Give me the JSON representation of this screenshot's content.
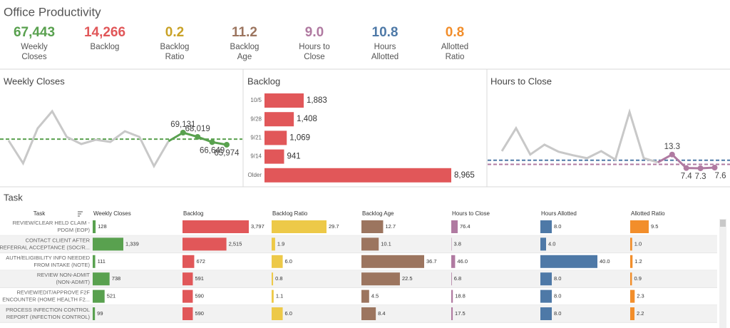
{
  "title": "Office Productivity",
  "kpis": [
    {
      "value": 67443,
      "value_label": "67,443",
      "label": [
        "Weekly",
        "Closes"
      ],
      "color": "#59a14f"
    },
    {
      "value": 14266,
      "value_label": "14,266",
      "label": [
        "Backlog"
      ],
      "color": "#e15759"
    },
    {
      "value": 0.2,
      "label": [
        "Backlog",
        "Ratio"
      ],
      "color": "#c9a227"
    },
    {
      "value": 11.2,
      "label": [
        "Backlog",
        "Age"
      ],
      "color": "#9c755f"
    },
    {
      "value": 9.0,
      "value_label": "9.0",
      "label": [
        "Hours to",
        "Close"
      ],
      "color": "#b07aa1"
    },
    {
      "value": 10.8,
      "label": [
        "Hours",
        "Allotted"
      ],
      "color": "#4e79a7"
    },
    {
      "value": 0.8,
      "label": [
        "Allotted",
        "Ratio"
      ],
      "color": "#f28e2b"
    }
  ],
  "chart_data": [
    {
      "type": "line",
      "title": "Weekly Closes",
      "values": [
        67085,
        61133,
        70247,
        74711,
        68015,
        66155,
        67271,
        66713,
        69500,
        68015,
        60389,
        66899,
        69131,
        68019,
        66649,
        65974
      ],
      "value_labels": [
        null,
        null,
        null,
        null,
        null,
        null,
        null,
        null,
        null,
        null,
        null,
        null,
        "69,131",
        "68,019",
        "66,649",
        "65,974"
      ],
      "color": "#c8c8c8",
      "highlight_color": "#59a14f",
      "highlight_last": 4,
      "reference_lines": [
        {
          "value": 67443,
          "color": "#59a14f"
        }
      ]
    },
    {
      "type": "bar",
      "orientation": "horizontal",
      "title": "Backlog",
      "categories": [
        "10/5",
        "9/28",
        "9/21",
        "9/14",
        "Older"
      ],
      "values": [
        1883,
        1408,
        1069,
        941,
        8965
      ],
      "value_labels": [
        "1,883",
        "1,408",
        "1,069",
        "941",
        "8,965"
      ],
      "color": "#e15759"
    },
    {
      "type": "line",
      "title": "Hours to Close",
      "values": [
        14.8,
        24.8,
        13.3,
        17.6,
        14.5,
        13.0,
        11.7,
        14.8,
        11.1,
        31.9,
        11.7,
        9.9,
        13.3,
        7.4,
        7.3,
        7.6
      ],
      "color": "#c8c8c8",
      "highlight_color": "#b07aa1",
      "highlight_last": 4,
      "reference_lines": [
        {
          "value": 10.8,
          "color": "#4e79a7"
        },
        {
          "value": 9.0,
          "color": "#b07aa1"
        }
      ]
    }
  ],
  "table": {
    "title": "Task",
    "header": "Task",
    "rows": [
      [
        "REVIEW/CLEAR HELD CLAIM -",
        "PDGM (EOP)"
      ],
      [
        "CONTACT CLIENT AFTER",
        "REFERRAL ACCEPTANCE (SOC/R..."
      ],
      [
        "AUTH/ELIGIBILITY INFO NEEDED",
        "FROM INTAKE (NOTE)"
      ],
      [
        "REVIEW NON-ADMIT",
        "(NON-ADMIT)"
      ],
      [
        "REVIEW/EDIT/APPROVE F2F",
        "ENCOUNTER (HOME HEALTH F2..."
      ],
      [
        "PROCESS INFECTION CONTROL",
        "REPORT (INFECTION CONTROL)"
      ]
    ],
    "columns": [
      {
        "name": "Weekly Closes",
        "color": "#59a14f",
        "values": [
          128,
          1339,
          111,
          738,
          521,
          99
        ],
        "value_labels": [
          "128",
          "1,339",
          "111",
          "738",
          "521",
          "99"
        ]
      },
      {
        "name": "Backlog",
        "color": "#e15759",
        "values": [
          3797,
          2515,
          672,
          591,
          590,
          590
        ],
        "value_labels": [
          "3,797",
          "2,515",
          "672",
          "591",
          "590",
          "590"
        ]
      },
      {
        "name": "Backlog Ratio",
        "color": "#edc948",
        "values": [
          29.7,
          1.9,
          6.0,
          0.8,
          1.1,
          6.0
        ],
        "value_labels": [
          "29.7",
          "1.9",
          "6.0",
          "0.8",
          "1.1",
          "6.0"
        ]
      },
      {
        "name": "Backlog Age",
        "color": "#9c755f",
        "values": [
          12.7,
          10.1,
          36.7,
          22.5,
          4.5,
          8.4
        ]
      },
      {
        "name": "Hours to Close",
        "color": "#b07aa1",
        "values": [
          76.4,
          3.8,
          46.0,
          6.8,
          18.8,
          17.5
        ],
        "value_labels": [
          "76.4",
          "3.8",
          "46.0",
          "6.8",
          "18.8",
          "17.5"
        ]
      },
      {
        "name": "Hours Allotted",
        "color": "#4e79a7",
        "values": [
          8.0,
          4.0,
          40.0,
          8.0,
          8.0,
          8.0
        ],
        "value_labels": [
          "8.0",
          "4.0",
          "40.0",
          "8.0",
          "8.0",
          "8.0"
        ]
      },
      {
        "name": "Allotted Ratio",
        "color": "#f28e2b",
        "values": [
          9.5,
          1.0,
          1.2,
          0.9,
          2.3,
          2.2
        ],
        "value_labels": [
          "9.5",
          "1.0",
          "1.2",
          "0.9",
          "2.3",
          "2.2"
        ]
      }
    ]
  }
}
